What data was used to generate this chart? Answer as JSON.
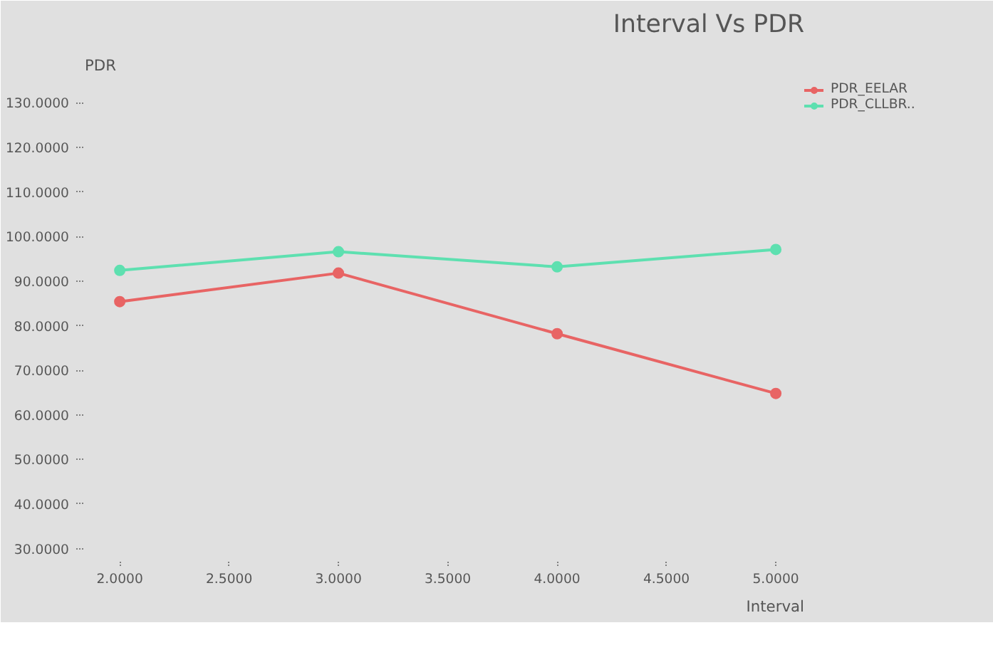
{
  "chart_data": {
    "type": "line",
    "title": "Interval Vs PDR",
    "xlabel": "Interval",
    "ylabel": "PDR",
    "x": [
      2,
      3,
      4,
      5
    ],
    "series": [
      {
        "name": "PDR_EELAR",
        "color": "#e86464",
        "values": [
          85.4,
          91.8,
          78.2,
          64.8
        ]
      },
      {
        "name": "PDR_CLLBR..",
        "color": "#5ee0b0",
        "values": [
          92.4,
          96.6,
          93.2,
          97.1
        ]
      }
    ],
    "xlim": [
      1.84,
      5.13
    ],
    "ylim": [
      26.1,
      134.7
    ],
    "xticks": [
      {
        "value": 2,
        "label": "2.0000"
      },
      {
        "value": 2.5,
        "label": "2.5000"
      },
      {
        "value": 3,
        "label": "3.0000"
      },
      {
        "value": 3.5,
        "label": "3.5000"
      },
      {
        "value": 4,
        "label": "4.0000"
      },
      {
        "value": 4.5,
        "label": "4.5000"
      },
      {
        "value": 5,
        "label": "5.0000"
      }
    ],
    "yticks": [
      {
        "value": 30,
        "label": "30.0000"
      },
      {
        "value": 40,
        "label": "40.0000"
      },
      {
        "value": 50,
        "label": "50.0000"
      },
      {
        "value": 60,
        "label": "60.0000"
      },
      {
        "value": 70,
        "label": "70.0000"
      },
      {
        "value": 80,
        "label": "80.0000"
      },
      {
        "value": 90,
        "label": "90.0000"
      },
      {
        "value": 100,
        "label": "100.0000"
      },
      {
        "value": 110,
        "label": "110.0000"
      },
      {
        "value": 120,
        "label": "120.0000"
      },
      {
        "value": 130,
        "label": "130.0000"
      }
    ],
    "legend": "top right",
    "marker": "circle",
    "line_style": "solid"
  }
}
